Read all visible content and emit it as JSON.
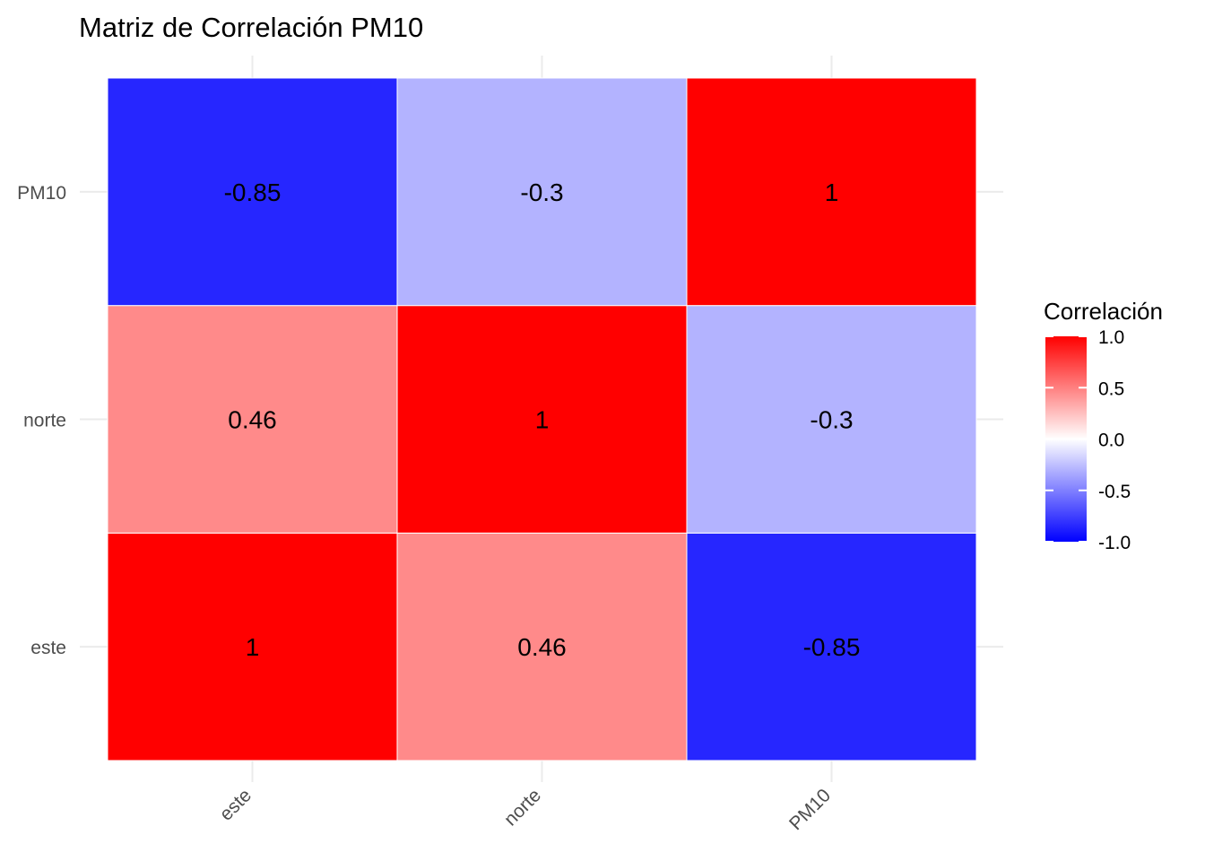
{
  "chart_data": {
    "type": "heatmap",
    "title": "Matriz de Correlación PM10",
    "xlabel": "",
    "ylabel": "",
    "x_categories": [
      "este",
      "norte",
      "PM10"
    ],
    "y_categories": [
      "este",
      "norte",
      "PM10"
    ],
    "matrix": [
      [
        1,
        0.46,
        -0.85
      ],
      [
        0.46,
        1,
        -0.3
      ],
      [
        -0.85,
        -0.3,
        1
      ]
    ],
    "cell_labels": [
      [
        "1",
        "0.46",
        "-0.85"
      ],
      [
        "0.46",
        "1",
        "-0.3"
      ],
      [
        "-0.85",
        "-0.3",
        "1"
      ]
    ],
    "color_scale": {
      "low": "#0000ff",
      "mid": "#ffffff",
      "high": "#ff0000",
      "limits": [
        -1,
        1
      ]
    },
    "legend": {
      "title": "Correlación",
      "ticks": [
        1.0,
        0.5,
        0.0,
        -0.5,
        -1.0
      ],
      "tick_labels": [
        "1.0",
        "0.5",
        "0.0",
        "-0.5",
        "-1.0"
      ],
      "placement": "right"
    },
    "grid": true
  }
}
